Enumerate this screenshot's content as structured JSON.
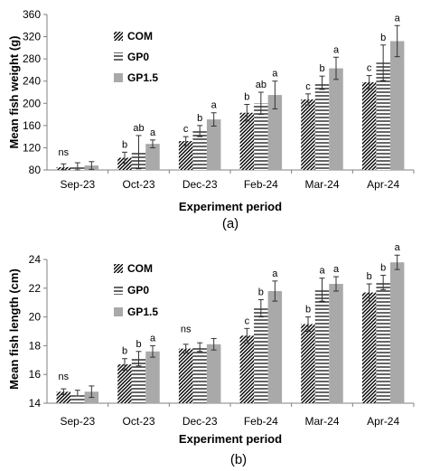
{
  "chart_data": [
    {
      "type": "bar",
      "ylabel": "Mean fish weight (g)",
      "xlabel": "Experiment period",
      "caption": "(a)",
      "ylim": [
        80,
        360
      ],
      "yticks": [
        "80",
        "120",
        "160",
        "200",
        "240",
        "280",
        "320",
        "360"
      ],
      "categories": [
        "Sep-23",
        "Oct-23",
        "Dec-23",
        "Feb-24",
        "Mar-24",
        "Apr-24"
      ],
      "legend_position": "top-left",
      "series": [
        {
          "name": "COM",
          "pattern": "diagonal",
          "values": [
            85,
            102,
            132,
            183,
            207,
            238
          ],
          "errors": [
            6,
            10,
            8,
            15,
            10,
            12
          ],
          "labels": [
            "",
            "b",
            "c",
            "b",
            "c",
            "c"
          ]
        },
        {
          "name": "GP0",
          "pattern": "horizontal",
          "values": [
            86,
            112,
            150,
            200,
            237,
            273
          ],
          "errors": [
            7,
            30,
            10,
            20,
            12,
            32
          ],
          "labels": [
            "",
            "ab",
            "b",
            "ab",
            "b",
            "b"
          ]
        },
        {
          "name": "GP1.5",
          "pattern": "solid",
          "color": "#a9a9a9",
          "values": [
            88,
            127,
            171,
            215,
            263,
            312
          ],
          "errors": [
            7,
            7,
            12,
            25,
            20,
            28
          ],
          "labels": [
            "",
            "a",
            "a",
            "a",
            "a",
            "a"
          ]
        }
      ],
      "group_labels": [
        "ns",
        "",
        "",
        "",
        "",
        ""
      ]
    },
    {
      "type": "bar",
      "ylabel": "Mean fish length (cm)",
      "xlabel": "Experiment period",
      "caption": "(b)",
      "ylim": [
        14,
        24
      ],
      "yticks": [
        "14",
        "16",
        "18",
        "20",
        "22",
        "24"
      ],
      "categories": [
        "Sep-23",
        "Oct-23",
        "Dec-23",
        "Feb-24",
        "Mar-24",
        "Apr-24"
      ],
      "legend_position": "top-left",
      "series": [
        {
          "name": "COM",
          "pattern": "diagonal",
          "values": [
            14.8,
            16.7,
            17.8,
            18.7,
            19.5,
            21.7
          ],
          "errors": [
            0.2,
            0.4,
            0.3,
            0.5,
            0.5,
            0.6
          ],
          "labels": [
            "",
            "b",
            "",
            "c",
            "b",
            "b"
          ]
        },
        {
          "name": "GP0",
          "pattern": "horizontal",
          "values": [
            14.7,
            17.1,
            17.9,
            20.6,
            21.9,
            22.4
          ],
          "errors": [
            0.2,
            0.5,
            0.3,
            0.6,
            0.8,
            0.5
          ],
          "labels": [
            "",
            "b",
            "",
            "b",
            "a",
            "b"
          ]
        },
        {
          "name": "GP1.5",
          "pattern": "solid",
          "color": "#a9a9a9",
          "values": [
            14.8,
            17.6,
            18.1,
            21.8,
            22.3,
            23.8
          ],
          "errors": [
            0.4,
            0.4,
            0.4,
            0.7,
            0.5,
            0.5
          ],
          "labels": [
            "",
            "a",
            "",
            "a",
            "a",
            "a"
          ]
        }
      ],
      "group_labels": [
        "ns",
        "",
        "ns",
        "",
        "",
        ""
      ]
    }
  ]
}
